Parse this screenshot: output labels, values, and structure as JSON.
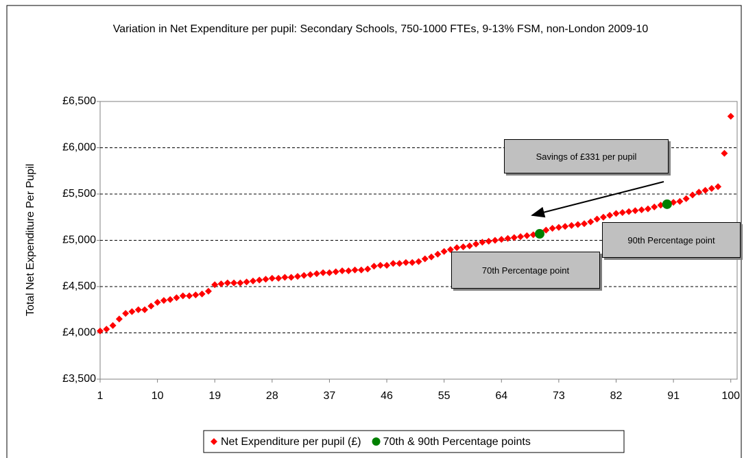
{
  "chart_data": {
    "type": "scatter",
    "title": "Variation in Net Expenditure per pupil: Secondary Schools, 750-1000 FTEs, 9-13% FSM, non-London 2009-10",
    "y_label": "Total Net Expenditure Per Pupil",
    "xlim": [
      1,
      101
    ],
    "xticks": [
      1,
      10,
      19,
      28,
      37,
      46,
      55,
      64,
      73,
      82,
      91,
      100
    ],
    "ylim": [
      3500,
      6500
    ],
    "yticks": [
      {
        "value": 3500,
        "label": "£3,500"
      },
      {
        "value": 4000,
        "label": "£4,000"
      },
      {
        "value": 4500,
        "label": "£4,500"
      },
      {
        "value": 5000,
        "label": "£5,000"
      },
      {
        "value": 5500,
        "label": "£5,500"
      },
      {
        "value": 6000,
        "label": "£6,000"
      },
      {
        "value": 6500,
        "label": "£6,500"
      }
    ],
    "grid": true,
    "legend": "bottom",
    "series": [
      {
        "name": "Net Expenditure per pupil (£)",
        "color": "#ff0000",
        "marker": "diamond",
        "x": [
          1,
          2,
          3,
          4,
          5,
          6,
          7,
          8,
          9,
          10,
          11,
          12,
          13,
          14,
          15,
          16,
          17,
          18,
          19,
          20,
          21,
          22,
          23,
          24,
          25,
          26,
          27,
          28,
          29,
          30,
          31,
          32,
          33,
          34,
          35,
          36,
          37,
          38,
          39,
          40,
          41,
          42,
          43,
          44,
          45,
          46,
          47,
          48,
          49,
          50,
          51,
          52,
          53,
          54,
          55,
          56,
          57,
          58,
          59,
          60,
          61,
          62,
          63,
          64,
          65,
          66,
          67,
          68,
          69,
          70,
          71,
          72,
          73,
          74,
          75,
          76,
          77,
          78,
          79,
          80,
          81,
          82,
          83,
          84,
          85,
          86,
          87,
          88,
          89,
          90,
          91,
          92,
          93,
          94,
          95,
          96,
          97,
          98,
          99,
          100
        ],
        "values": [
          4020,
          4040,
          4080,
          4150,
          4210,
          4230,
          4250,
          4250,
          4290,
          4330,
          4350,
          4360,
          4380,
          4400,
          4400,
          4410,
          4420,
          4450,
          4520,
          4530,
          4540,
          4540,
          4540,
          4550,
          4560,
          4570,
          4580,
          4590,
          4590,
          4600,
          4600,
          4610,
          4620,
          4630,
          4640,
          4650,
          4650,
          4660,
          4670,
          4670,
          4680,
          4680,
          4690,
          4720,
          4730,
          4730,
          4750,
          4750,
          4760,
          4760,
          4770,
          4800,
          4820,
          4850,
          4880,
          4900,
          4920,
          4930,
          4940,
          4960,
          4980,
          4990,
          5000,
          5010,
          5020,
          5030,
          5040,
          5050,
          5060,
          5080,
          5110,
          5130,
          5140,
          5150,
          5160,
          5170,
          5180,
          5200,
          5230,
          5250,
          5270,
          5290,
          5300,
          5310,
          5320,
          5330,
          5340,
          5360,
          5380,
          5390,
          5410,
          5420,
          5450,
          5490,
          5520,
          5540,
          5560,
          5580,
          5940,
          6340
        ]
      },
      {
        "name": "70th & 90th Percentage points",
        "color": "#008000",
        "marker": "circle",
        "x": [
          70,
          90
        ],
        "values": [
          5070,
          5390
        ]
      }
    ],
    "annotations": [
      "Savings of £331 per pupil",
      "70th Percentage point",
      "90th Percentage point"
    ]
  }
}
